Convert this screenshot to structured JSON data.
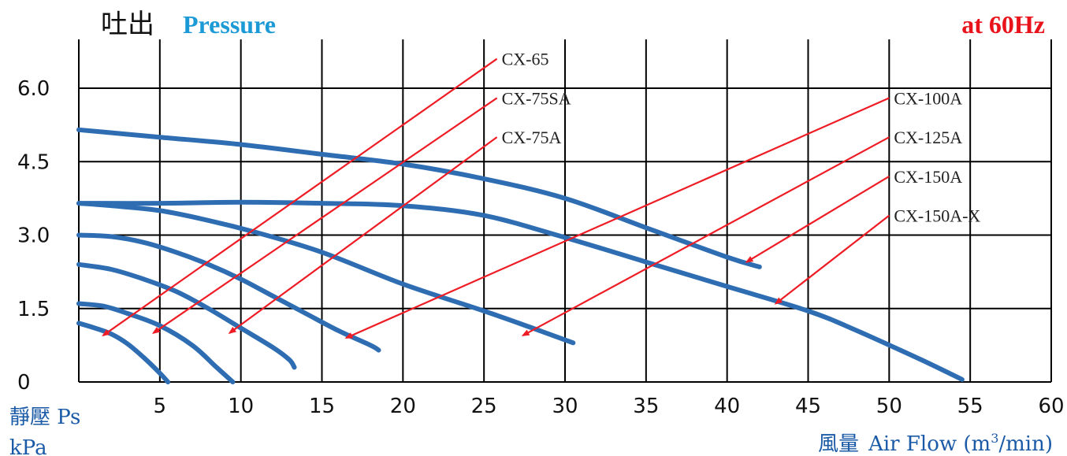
{
  "title_jp": "吐出",
  "title_en": "Pressure",
  "freq": "at 60Hz",
  "ylabel_jp": "靜壓 Ps",
  "ylabel_unit": "kPa",
  "xlabel_jp": "風量",
  "xlabel_en": "Air Flow (m",
  "xlabel_sup": "3",
  "xlabel_tail": "/min)",
  "colors": {
    "curve": "#2f6db3",
    "arrow": "#ee1c25",
    "title_en": "#1b9ad6",
    "freq": "#e8131b",
    "axis_text": "#1a5aa6"
  },
  "chart_data": {
    "type": "line",
    "xlim": [
      0,
      60
    ],
    "ylim": [
      0,
      6
    ],
    "x_ticks": [
      "5",
      "10",
      "15",
      "20",
      "25",
      "30",
      "35",
      "40",
      "45",
      "50",
      "55",
      "60"
    ],
    "y_ticks": [
      "0",
      "1.5",
      "3.0",
      "4.5",
      "6.0"
    ],
    "grid": true,
    "series": [
      {
        "name": "CX-65",
        "points": [
          [
            0,
            1.2
          ],
          [
            1,
            1.1
          ],
          [
            2,
            0.98
          ],
          [
            3,
            0.78
          ],
          [
            4,
            0.5
          ],
          [
            5,
            0.18
          ],
          [
            5.5,
            0
          ]
        ]
      },
      {
        "name": "CX-75SA",
        "points": [
          [
            0,
            1.6
          ],
          [
            1.5,
            1.55
          ],
          [
            3,
            1.4
          ],
          [
            5,
            1.15
          ],
          [
            7,
            0.75
          ],
          [
            8.5,
            0.3
          ],
          [
            9.5,
            0
          ]
        ]
      },
      {
        "name": "CX-75A",
        "points": [
          [
            0,
            2.4
          ],
          [
            2,
            2.3
          ],
          [
            4,
            2.1
          ],
          [
            6,
            1.85
          ],
          [
            8,
            1.5
          ],
          [
            10,
            1.1
          ],
          [
            12,
            0.7
          ],
          [
            13,
            0.45
          ],
          [
            13.3,
            0.3
          ]
        ]
      },
      {
        "name": "CX-100A",
        "points": [
          [
            0,
            3.0
          ],
          [
            2,
            2.97
          ],
          [
            4,
            2.85
          ],
          [
            6,
            2.65
          ],
          [
            8,
            2.4
          ],
          [
            10,
            2.1
          ],
          [
            12,
            1.75
          ],
          [
            14,
            1.4
          ],
          [
            16,
            1.05
          ],
          [
            18,
            0.75
          ],
          [
            18.5,
            0.65
          ]
        ]
      },
      {
        "name": "CX-125A",
        "points": [
          [
            0,
            3.65
          ],
          [
            2,
            3.6
          ],
          [
            5,
            3.5
          ],
          [
            8,
            3.3
          ],
          [
            11,
            3.05
          ],
          [
            15,
            2.65
          ],
          [
            20,
            2.0
          ],
          [
            25,
            1.45
          ],
          [
            28,
            1.1
          ],
          [
            30.5,
            0.8
          ]
        ]
      },
      {
        "name": "CX-150A",
        "points": [
          [
            0,
            3.65
          ],
          [
            5,
            3.65
          ],
          [
            10,
            3.67
          ],
          [
            15,
            3.65
          ],
          [
            20,
            3.6
          ],
          [
            25,
            3.4
          ],
          [
            30,
            2.95
          ],
          [
            35,
            2.45
          ],
          [
            40,
            1.95
          ],
          [
            45,
            1.45
          ],
          [
            48,
            1.05
          ],
          [
            52,
            0.45
          ],
          [
            54.5,
            0.05
          ]
        ]
      },
      {
        "name": "CX-150A-X",
        "points": [
          [
            0,
            5.15
          ],
          [
            5,
            5.0
          ],
          [
            10,
            4.85
          ],
          [
            15,
            4.65
          ],
          [
            20,
            4.45
          ],
          [
            25,
            4.15
          ],
          [
            30,
            3.75
          ],
          [
            35,
            3.15
          ],
          [
            40,
            2.55
          ],
          [
            42,
            2.35
          ]
        ]
      }
    ],
    "annotations": [
      {
        "text": "CX-65",
        "text_at": [
          25.8,
          6.6
        ],
        "arrow_from": [
          25.8,
          6.6
        ],
        "arrow_to": [
          1.5,
          0.95
        ]
      },
      {
        "text": "CX-75SA",
        "text_at": [
          25.8,
          5.8
        ],
        "arrow_from": [
          25.8,
          5.8
        ],
        "arrow_to": [
          4.6,
          1.0
        ]
      },
      {
        "text": "CX-75A",
        "text_at": [
          25.8,
          5.0
        ],
        "arrow_from": [
          25.8,
          5.0
        ],
        "arrow_to": [
          9.3,
          1.0
        ]
      },
      {
        "text": "CX-100A",
        "text_at": [
          50.0,
          5.8
        ],
        "arrow_from": [
          50.0,
          5.8
        ],
        "arrow_to": [
          16.5,
          0.9
        ]
      },
      {
        "text": "CX-125A",
        "text_at": [
          50.0,
          5.0
        ],
        "arrow_from": [
          50.0,
          5.0
        ],
        "arrow_to": [
          27.4,
          0.95
        ]
      },
      {
        "text": "CX-150A",
        "text_at": [
          50.0,
          4.2
        ],
        "arrow_from": [
          50.0,
          4.2
        ],
        "arrow_to": [
          41.2,
          2.45
        ]
      },
      {
        "text": "CX-150A-X",
        "text_at": [
          50.0,
          3.4
        ],
        "arrow_from": [
          50.0,
          3.4
        ],
        "arrow_to": [
          43.0,
          1.6
        ]
      }
    ]
  }
}
